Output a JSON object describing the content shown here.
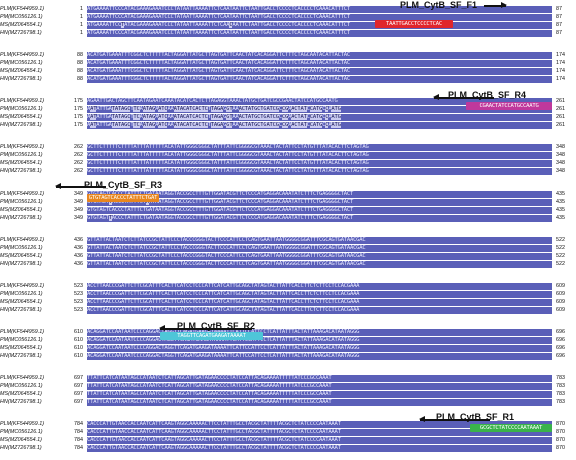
{
  "sequences": [
    "PLM(KF544959.1)",
    "PM(MC056126.1)",
    "MS(MZ064554.1)",
    "HN(MZ726798.1)"
  ],
  "colors": {
    "conserved": "#5a5fb8",
    "variable": "#c9caf0",
    "F1": "#e0262b",
    "R4": "#c0389c",
    "R3": "#e8861e",
    "R2": "#4ec6d8",
    "R1": "#39b34a"
  },
  "blocks": [
    {
      "start": 1,
      "end": 87,
      "lines": [
        "ATGAAAATTCCCATACGAAAGAAATCCCTATAATTAAAATTCTCAATAATTCTAATTGACCTCCCCTCACCCCTCAAACATTTCT",
        "ATGAAAATTCCCATACGAAAGAAATCCCTATAATTAAAATTCTCAATAATTCTAATTGACCTCCCCTCACCCCTCAAACATTTCT",
        "ATGAAAATTCCTATACGAAAGAAATCCCTATAATTAAAATTCTCAACAATTCTAATTGACCTCCCCTCACCCCTCAAACATTTCT",
        "ATGAAAATTCCCATACGAAAGAAATCCCTATAATTAAAATTCTCAATAATTCTAATTGACCTCCCCTCACCCCTCAAACATTTCT"
      ]
    },
    {
      "start": 88,
      "end": 174,
      "lines": [
        "ACATGATGAAATTTCGGCTCTTTTTACTAGGATTATGCTTAGTGATTCAACTATCACAGGATTCTTTCTAGCAATACATTACTAC",
        "ACATGATGAAATTTCGGCTCTTTTTACTAGGATTATGCTTAGTGATTCAACTATCACAGGATTCTTTCTAGCAATACATTACTAC",
        "ACATGATGAAATTTCGGCTCTTTTTACTAGGATTATGCTTAGTGATTCAACTATCACAGGATTCTTTCTAGCAATACATTACTAC",
        "ACATGATGAAATTTCGGCTCTTTTTACTAGGATTATGCTTAGTGATTCAACTATCACAGGATTCTTTCTAGCAATACATTACTAC"
      ]
    },
    {
      "start": 175,
      "end": 261,
      "lines": [
        "AGAATTGACTAGCTTCAATAGAATCAAATACATCACTCTTAGAGGTAAACTATGCTGATCGCCGAACTATCCATGCCAATG",
        "AATATTGATATAGCTTCAATAGAATCAAATACATCACTCTTAGAGGTAAACTATGCTGATCGCCGAACTATCCATGCCAATG",
        "AATATTGATATAGCTTCAATAGAATCAAATACATCACTCTTAGAGGTAAACTATGCTGATCGCCGAACTATCCATGCCAATG",
        "AATATTGATATAGCTTCAATAGAATCAAATACATCACTCTTAGAGGTAAACTATGCTGATCGCCGAACTATCCATGCCAATG"
      ]
    },
    {
      "start": 262,
      "end": 348,
      "lines": [
        "GCTTCTTTTTCTTTTATTTATTTTTACATATTGGGCGGGCTATTTATTCGGGGCGTAAACTACTATTCCTATGTTTATACACTTCTAGTAG",
        "GCTTCTTTTTCTTTTATTTATTTTTACATATTGGGCGGGCTATTTATTCGGGGCGTAAACTACTATTCCTATGTTTATACACTTCTAGTAG",
        "GCTTCTTTTTCTTTTATTTATTTTTACATATTGGGCGGGCTATTTATTCGGGGCGTAAACTACTATTCCTATGTTTATACACTTCTAGTAG",
        "GCTTCTTTTTCTTTTATTTATTTTTACATATTGGGCGGGCTATTTATTCGGGGCGTAAACTACTATTCCTATGTTTATACACTTCTAGTAG"
      ]
    },
    {
      "start": 349,
      "end": 435,
      "lines": [
        "GTGTAGTCACCCTATTTCTGATAATAGGTACCGCCTTTGTTGGATACGTTCTCCCATGAGGACAAATATCTTTCTGAGGGGCTACT",
        "GTGTAGTTACCCTATTTCTAATAATAGGTACCGCCTTTGTTGGATACGTTCTCCCATGAGGACAAATATCTTTCTGAGGGGCTACT",
        "GTGTAGTCACCCTATTTCTGATAATAGGTACCGCCTTTGTTGGATACGTTCTCCCATGAGGACAAATATCTTTCTGAGGGGCTACT",
        "GTGTAGTTACCCTATTTCTGATAATAGGTACCGCCTTTGTTGGATACGTTCTCCCATGAGGACAAATATCTTTCTGAGGGGCTACT"
      ]
    },
    {
      "start": 436,
      "end": 522,
      "lines": [
        "GTTATTACTAATCTCTTATCCGCTATTCCCTACCCGGGTACTTCCCATTCCTCAGTGAATTAATGGGGCGGATTTCGCAGTGATAACGAC",
        "GTTATTACTAATCTCTTATCCGCTATTCCCTACCCGGGTACTTCCCATTCCTCAGTGAATTAATGGGGCGGATTTCGCAGTGATAACGAC",
        "GTTATTACTAATCTCTTATCCGCTATTCCCTACCCGGGTACTTCCCATTCCTCAGTGAATTAATGGGGCGGATTTCGCAGTGATAACGAC",
        "GTTATTACTAATCTCTTATCCGCTATTCCCTACCCGGGTACTTCCCATTCCTCAGTGAATTAATGGGGCGGATTTCGCAGTGATAACGAC"
      ]
    },
    {
      "start": 523,
      "end": 609,
      "lines": [
        "ACCTTAACCCGATTCTTCGCATTTCACTTCATCCTCCCATTCATCATTGCAGCTATAGTACTTATTCACCTTCTCTTCCTCCACGAAA",
        "ACCTTAACCCGATTCTTCGCATTTCACTTCATCCTCCCATTCATCATTGCAGCTATAGTACTTATTCACCTTCTCTTCCTCCACGAAA",
        "ACCTTAACCCGATTCTTCGCATTTCACTTCATCCTCCCATTCATCATTGCAGCTATAGTACTTATTCACCTTCTCTTCCTCCACGAAA",
        "ACCTTAACCCGATTCTTCGCATTTCACTTCATCCTCCCATTCATCATTGCAGCTATAGTACTTATTCACCTTCTCTTCCTCCACGAAA"
      ]
    },
    {
      "start": 610,
      "end": 696,
      "lines": [
        "ACAGGATCCAATAATCCCCAGGACTAGGTTCAGATGAAGATAAAATTCATTCCATTCCTCATTATTTACTATTAAAGACATAATAGGG",
        "ACAGGATCCAATAATCCCCAGGACTAGGTTCAGATGAAGATAAAATTCATTCCATTCCTCATTATTTACTATTAAAGACATAATAGGG",
        "ACAGGATCCAATAATCCCCAGGACTAGGTTCAGATGAAGATAAAATTCATTCCATTCCTCATTATTTACTATTAAAGACATAATAGGG",
        "ACAGGATCCAATAATCCCCAGGACTAGGTTCAGATGAAGATAAAATTCATTCCATTCCTCATTATTTACTATTAAAGACATAATAGGG"
      ]
    },
    {
      "start": 697,
      "end": 783,
      "lines": [
        "TTATTCATCATAATAGCCATAATCTCATTAGCATTGATAGAACCCCTATCCATTACAGAAAATTTTTATCCCGCCAAAT",
        "TTATTCATCATAATAGCCATAATCTCATTAGCATTGATAGAACCCCTATCCATTACAGAAAATTTTTATCCCGCCAAAT",
        "TTATTCATCATAATAGCCATAATCTCATTAGCATTGATAGAACCCCTATCCATTACAGAAAATTTTTATCCCGCCAAAT",
        "TTATTCATCATAATAGCCATAATCTCATTAGCATTGATAGAACCCCTATCCATTACAGAAAATTTTTATCCCGCCAAAT"
      ]
    },
    {
      "start": 784,
      "end": 870,
      "lines": [
        "CACCCATTGTAACCACCAATCATTCAAGTAGGCAAAAACTTCCTATTTGCCTACGCTATTTTACGCTCTATCCCCAATAAAT",
        "CACCCATTGTAACCACCAATCATTCAAGTAGGCAAAAACTTCCTATTTGCCTACGCTATTTTACGCTCTATCCCCAATAAAT",
        "CACCCATTGTAACCACCAATCATTCAAGTAGGCAAAAACTTCCTATTTGCCTACGCTATTTTACGCTCTATCCCCAATAAAT",
        "CACCCATTGTAACCACCAATCATTCAAGTAGGCAAAAACTTCCTATTTGCCTACGCTATTTTACGCTCTATCCCCAATAAAT"
      ]
    }
  ],
  "primers": [
    {
      "id": "F1",
      "name": "PLM_CytB_SF_F1",
      "direction": "forward",
      "block": 0,
      "seq": "TAATTGACCTCCCCTCAC"
    },
    {
      "id": "R4",
      "name": "PLM_CytB_SF_R4",
      "direction": "reverse",
      "block": 2,
      "seq": "CGAACTATCCATGCCAATG"
    },
    {
      "id": "R3",
      "name": "PLM_CytB_SF_R3",
      "direction": "reverse",
      "block": 4,
      "seq": "GTGTAGTCACCCTATTTCTGAT"
    },
    {
      "id": "R2",
      "name": "PLM_CytB_SF_R2",
      "direction": "reverse",
      "block": 7,
      "seq": "TAGGTTCAGATGAAGATAAAAT"
    },
    {
      "id": "R1",
      "name": "PLM_CytB_SF_R1",
      "direction": "reverse",
      "block": 9,
      "seq": "GCGCTCTATCCCCAATAAAT"
    }
  ]
}
